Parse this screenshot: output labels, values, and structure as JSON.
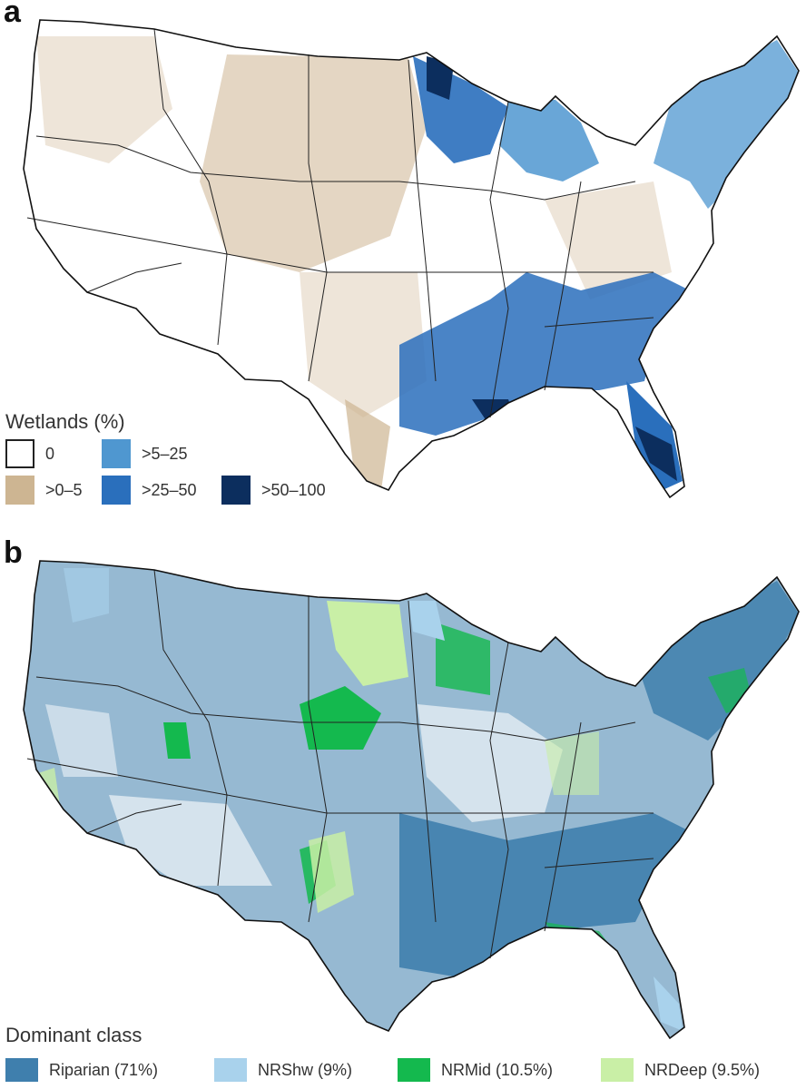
{
  "panel_a": {
    "letter": "a",
    "legend_title": "Wetlands (%)",
    "legend": [
      {
        "label": "0",
        "color": "#ffffff",
        "outlined": true
      },
      {
        "label": ">0–5",
        "color": "#cdb592"
      },
      {
        "label": ">5–25",
        "color": "#4f97d0"
      },
      {
        "label": ">25–50",
        "color": "#2a6fbc"
      },
      {
        "label": ">50–100",
        "color": "#0c2e5e"
      }
    ]
  },
  "panel_b": {
    "letter": "b",
    "legend_title": "Dominant class",
    "legend": [
      {
        "label": "Riparian (71%)",
        "color": "#3f7fad"
      },
      {
        "label": "NRShw (9%)",
        "color": "#a9d2ec"
      },
      {
        "label": "NRMid (10.5%)",
        "color": "#14b94e"
      },
      {
        "label": "NRDeep (9.5%)",
        "color": "#c9efa6"
      }
    ]
  }
}
